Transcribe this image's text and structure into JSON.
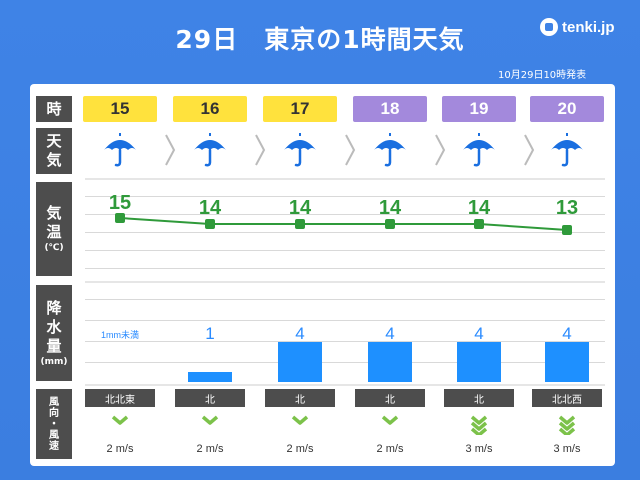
{
  "title": "29日　東京の1時間天気",
  "logo": "tenki.jp",
  "issued": "10月29日10時発表",
  "row_labels": {
    "time": "時",
    "weather": [
      "天",
      "気"
    ],
    "temperature": [
      "気",
      "温"
    ],
    "temperature_unit": "(℃)",
    "precip": [
      "降",
      "水",
      "量"
    ],
    "precip_unit": "(mm)",
    "wind": [
      "風",
      "向",
      "・",
      "風",
      "速"
    ]
  },
  "hours": [
    {
      "hour": "15",
      "period": "day",
      "weather": "rain",
      "temp": 15,
      "precip": 0,
      "precip_label": "1mm未満",
      "wind_dir": "北北東",
      "wind_speed": "2 m/s",
      "wind_level": 1
    },
    {
      "hour": "16",
      "period": "day",
      "weather": "rain",
      "temp": 14,
      "precip": 1,
      "precip_label": "1",
      "wind_dir": "北",
      "wind_speed": "2 m/s",
      "wind_level": 1
    },
    {
      "hour": "17",
      "period": "day",
      "weather": "rain",
      "temp": 14,
      "precip": 4,
      "precip_label": "4",
      "wind_dir": "北",
      "wind_speed": "2 m/s",
      "wind_level": 1
    },
    {
      "hour": "18",
      "period": "night",
      "weather": "rain",
      "temp": 14,
      "precip": 4,
      "precip_label": "4",
      "wind_dir": "北",
      "wind_speed": "2 m/s",
      "wind_level": 1
    },
    {
      "hour": "19",
      "period": "night",
      "weather": "rain",
      "temp": 14,
      "precip": 4,
      "precip_label": "4",
      "wind_dir": "北",
      "wind_speed": "3 m/s",
      "wind_level": 2
    },
    {
      "hour": "20",
      "period": "night",
      "weather": "rain",
      "temp": 13,
      "precip": 4,
      "precip_label": "4",
      "wind_dir": "北北西",
      "wind_speed": "3 m/s",
      "wind_level": 2
    }
  ],
  "colors": {
    "background": "#3f83e6",
    "day": "#ffe23d",
    "night": "#a389dc",
    "temp_line": "#2f9a3a",
    "rain_bar": "#1e90ff",
    "umbrella": "#1a6fe0",
    "wind_icon": "#7cc24a"
  },
  "icon_names": {
    "weather": "umbrella-icon",
    "wind": "wind-arrow-icon",
    "separator": "chevron-right-icon"
  }
}
